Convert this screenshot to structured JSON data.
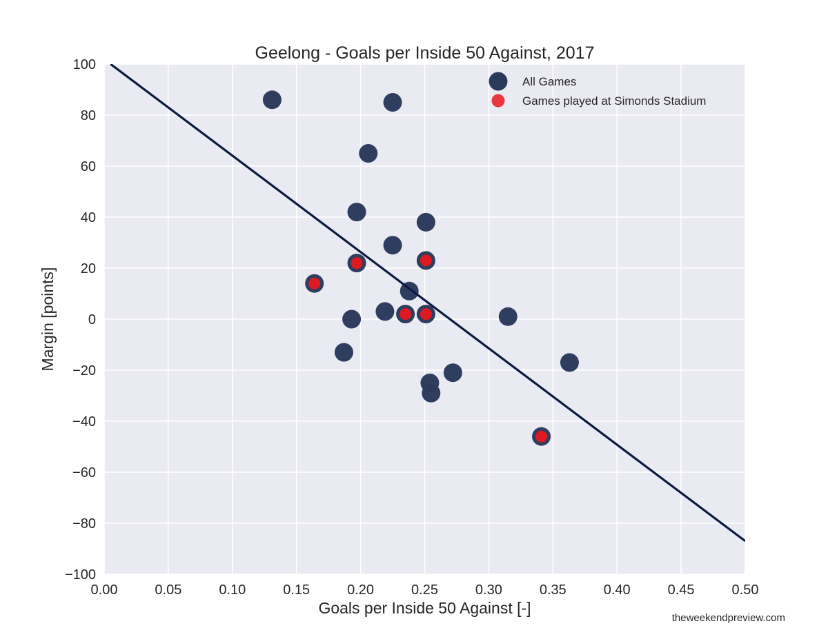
{
  "chart_data": {
    "type": "scatter",
    "title": "Geelong - Goals per Inside 50 Against, 2017",
    "xlabel": "Goals per Inside 50 Against [-]",
    "ylabel": "Margin [points]",
    "xlim": [
      0.0,
      0.5
    ],
    "ylim": [
      -100,
      100
    ],
    "xticks": [
      "0.00",
      "0.05",
      "0.10",
      "0.15",
      "0.20",
      "0.25",
      "0.30",
      "0.35",
      "0.40",
      "0.45",
      "0.50"
    ],
    "yticks": [
      "100",
      "80",
      "60",
      "40",
      "20",
      "0",
      "−20",
      "−40",
      "−60",
      "−80",
      "−100"
    ],
    "grid": true,
    "legend_position": "top-right",
    "series": [
      {
        "name": "All Games",
        "color": "#2b3a5c",
        "points": [
          {
            "x": 0.131,
            "y": 86
          },
          {
            "x": 0.225,
            "y": 85
          },
          {
            "x": 0.206,
            "y": 65
          },
          {
            "x": 0.197,
            "y": 42
          },
          {
            "x": 0.251,
            "y": 38
          },
          {
            "x": 0.225,
            "y": 29
          },
          {
            "x": 0.197,
            "y": 22
          },
          {
            "x": 0.251,
            "y": 23
          },
          {
            "x": 0.164,
            "y": 14
          },
          {
            "x": 0.238,
            "y": 11
          },
          {
            "x": 0.219,
            "y": 3
          },
          {
            "x": 0.235,
            "y": 2
          },
          {
            "x": 0.251,
            "y": 2
          },
          {
            "x": 0.193,
            "y": 0
          },
          {
            "x": 0.315,
            "y": 1
          },
          {
            "x": 0.187,
            "y": -13
          },
          {
            "x": 0.363,
            "y": -17
          },
          {
            "x": 0.272,
            "y": -21
          },
          {
            "x": 0.254,
            "y": -25
          },
          {
            "x": 0.255,
            "y": -29
          },
          {
            "x": 0.341,
            "y": -46
          }
        ]
      },
      {
        "name": "Games played at Simonds Stadium",
        "color": "#e8171f",
        "points": [
          {
            "x": 0.197,
            "y": 22
          },
          {
            "x": 0.251,
            "y": 23
          },
          {
            "x": 0.164,
            "y": 14
          },
          {
            "x": 0.235,
            "y": 2
          },
          {
            "x": 0.251,
            "y": 2
          },
          {
            "x": 0.341,
            "y": -46
          }
        ]
      }
    ],
    "trendline": {
      "color": "#0b1a3f",
      "x": [
        0.005,
        0.5
      ],
      "y": [
        100,
        -87
      ]
    }
  },
  "watermark": "theweekendpreview.com"
}
